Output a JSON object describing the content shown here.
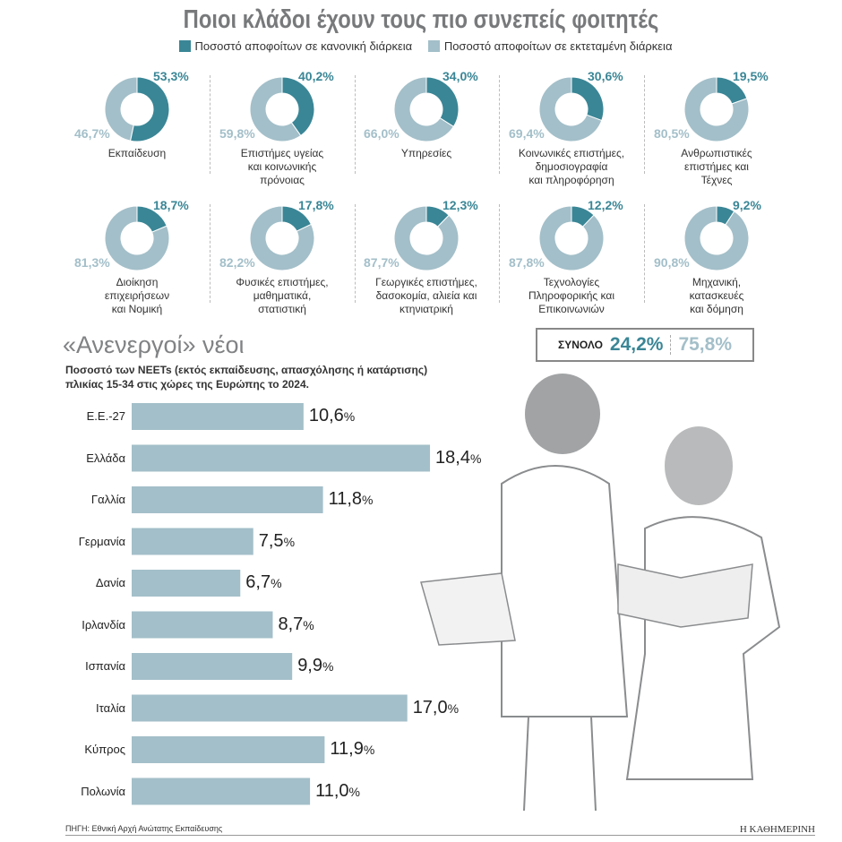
{
  "title": "Ποιοι κλάδοι έχουν τους πιο συνεπείς φοιτητές",
  "legend": {
    "normal": "Ποσοστό αποφοίτων σε κανονική διάρκεια",
    "extended": "Ποσοστό αποφοίτων σε εκτεταμένη διάρκεια"
  },
  "colors": {
    "normal": "#3a8696",
    "extended": "#a3bfc9",
    "bar": "#a3bfc9"
  },
  "total": {
    "label": "ΣΥΝΟΛΟ",
    "normal": "24,2%",
    "extended": "75,8%"
  },
  "neet": {
    "title": "«Ανενεργοί» νέοι",
    "subtitle1": "Ποσοστό των NEETs (εκτός εκπαίδευσης, απασχόλησης ή κατάρτισης)",
    "subtitle2": "πλικίας 15-34 στις χώρες της Ευρώπης το 2024."
  },
  "source": "ΠΗΓΗ: Εθνική Αρχή Ανώτατης Εκπαίδευσης",
  "brand": "Η ΚΑΘΗΜΕΡΙΝΗ",
  "chart_data": [
    {
      "type": "pie",
      "title": "Ποιοι κλάδοι έχουν τους πιο συνεπείς φοιτητές",
      "series_names": [
        "Ποσοστό αποφοίτων σε κανονική διάρκεια",
        "Ποσοστό αποφοίτων σε εκτεταμένη διάρκεια"
      ],
      "items": [
        {
          "category": "Εκπαίδευση",
          "normal": 53.3,
          "extended": 46.7,
          "normal_label": "53,3",
          "extended_label": "46,7"
        },
        {
          "category": "Επιστήμες υγείας\nκαι κοινωνικής\nπρόνοιας",
          "normal": 40.2,
          "extended": 59.8,
          "normal_label": "40,2",
          "extended_label": "59,8"
        },
        {
          "category": "Υπηρεσίες",
          "normal": 34.0,
          "extended": 66.0,
          "normal_label": "34,0",
          "extended_label": "66,0"
        },
        {
          "category": "Κοινωνικές επιστήμες,\nδημοσιογραφία\nκαι πληροφόρηση",
          "normal": 30.6,
          "extended": 69.4,
          "normal_label": "30,6",
          "extended_label": "69,4"
        },
        {
          "category": "Ανθρωπιστικές\nεπιστήμες και\nΤέχνες",
          "normal": 19.5,
          "extended": 80.5,
          "normal_label": "19,5",
          "extended_label": "80,5"
        },
        {
          "category": "Διοίκηση\nεπιχειρήσεων\nκαι Νομική",
          "normal": 18.7,
          "extended": 81.3,
          "normal_label": "18,7",
          "extended_label": "81,3"
        },
        {
          "category": "Φυσικές επιστήμες,\nμαθηματικά,\nστατιστική",
          "normal": 17.8,
          "extended": 82.2,
          "normal_label": "17,8",
          "extended_label": "82,2"
        },
        {
          "category": "Γεωργικές επιστήμες,\nδασοκομία, αλιεία και\nκτηνιατρική",
          "normal": 12.3,
          "extended": 87.7,
          "normal_label": "12,3",
          "extended_label": "87,7"
        },
        {
          "category": "Τεχνολογίες\nΠληροφορικής και\nΕπικοινωνιών",
          "normal": 12.2,
          "extended": 87.8,
          "normal_label": "12,2",
          "extended_label": "87,8"
        },
        {
          "category": "Μηχανική,\nκατασκευές\nκαι δόμηση",
          "normal": 9.2,
          "extended": 90.8,
          "normal_label": "9,2",
          "extended_label": "90,8"
        }
      ]
    },
    {
      "type": "bar",
      "orientation": "horizontal",
      "title": "«Ανενεργοί» νέοι",
      "unit": "%",
      "categories": [
        "Ε.Ε.-27",
        "Ελλάδα",
        "Γαλλία",
        "Γερμανία",
        "Δανία",
        "Ιρλανδία",
        "Ισπανία",
        "Ιταλία",
        "Κύπρος",
        "Πολωνία"
      ],
      "values": [
        10.6,
        18.4,
        11.8,
        7.5,
        6.7,
        8.7,
        9.9,
        17.0,
        11.9,
        11.0
      ],
      "labels": [
        "10,6",
        "18,4",
        "11,8",
        "7,5",
        "6,7",
        "8,7",
        "9,9",
        "17,0",
        "11,9",
        "11,0"
      ]
    }
  ]
}
